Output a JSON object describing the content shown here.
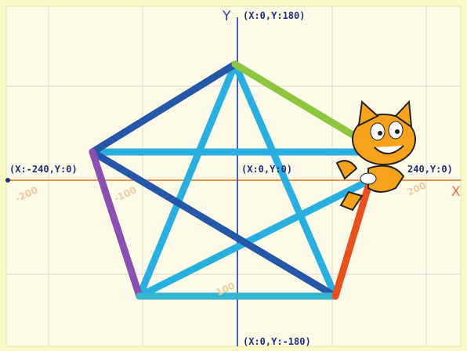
{
  "axis_titles": {
    "y": "Y",
    "x": "X"
  },
  "coordinate_labels": {
    "top": "(X:0,Y:180)",
    "left": "(X:-240,Y:0)",
    "center": "(X:0,Y:0)",
    "right": "240,Y:0)",
    "bottom": "(X:0,Y:-180)"
  },
  "scale_labels": [
    "-200",
    "-100",
    "100",
    "200"
  ]
}
